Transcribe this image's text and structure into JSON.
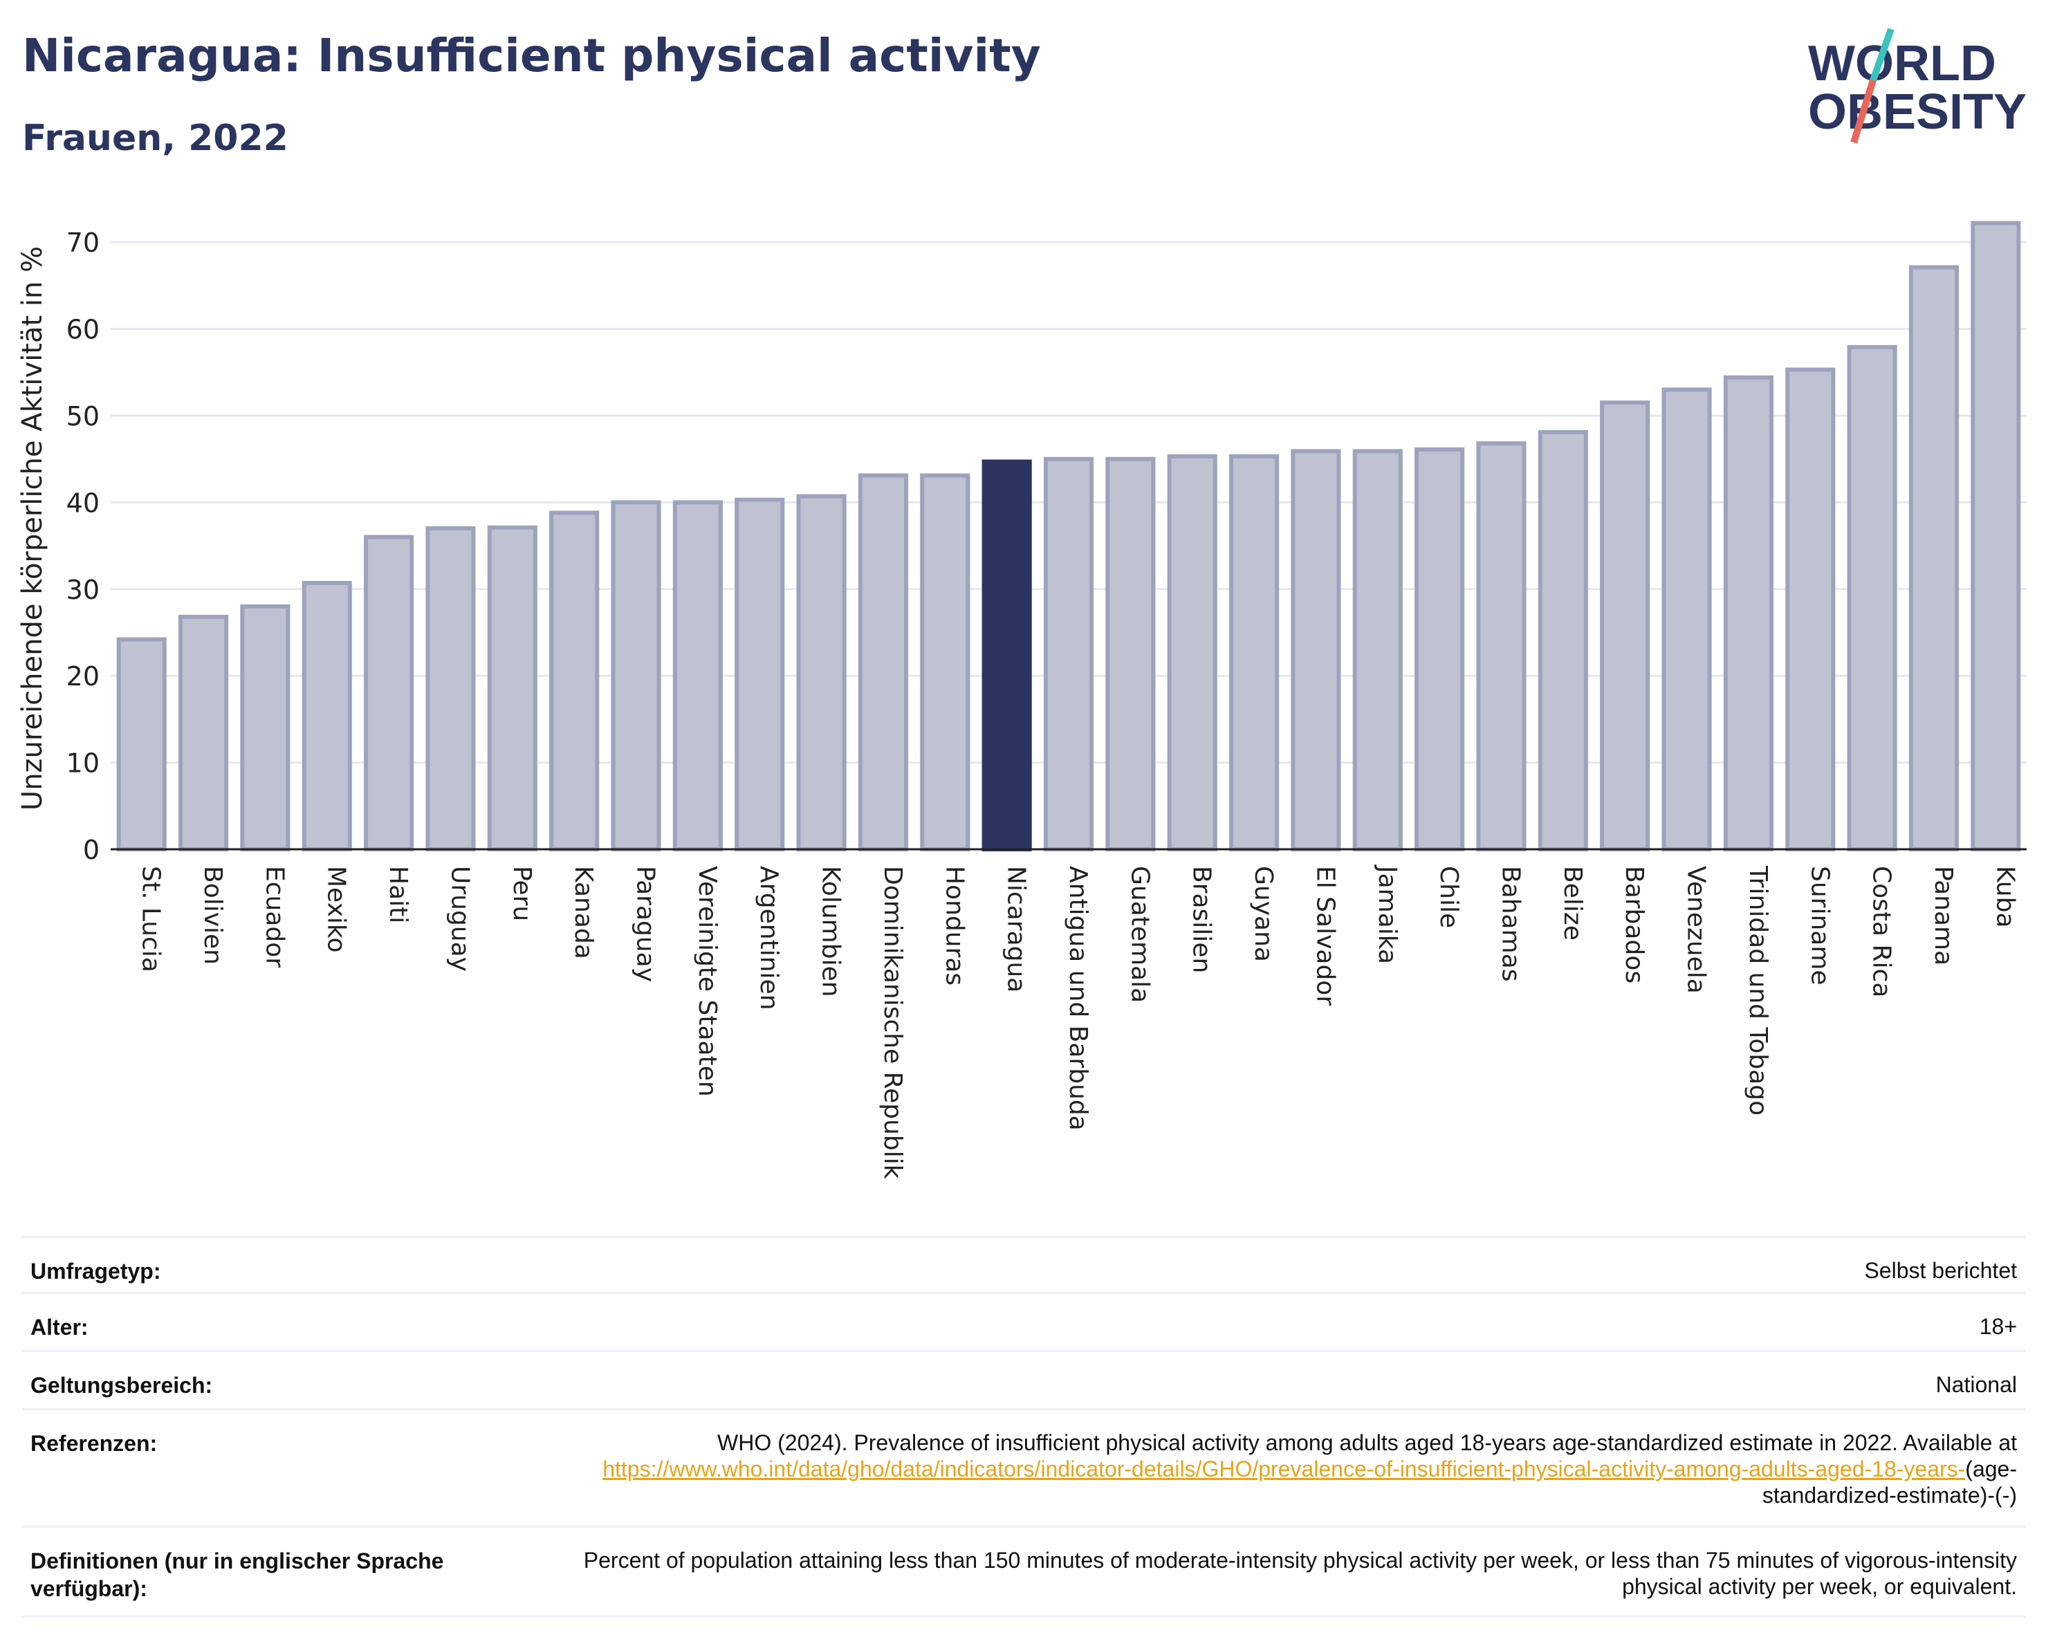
{
  "header": {
    "title": "Nicaragua: Insufficient physical activity",
    "subtitle": "Frauen, 2022"
  },
  "logo": {
    "line1": "WORLD",
    "line2": "OBESITY",
    "colors": {
      "text": "#2b3560",
      "slash_top": "#3cc3c0",
      "slash_bottom": "#e8665a"
    }
  },
  "colors": {
    "bar": "#bfc2d0",
    "bar_stroke": "#9da3bc",
    "highlight": "#2b3560",
    "grid": "#e6e8ef",
    "axis": "#222222"
  },
  "chart_data": {
    "type": "bar",
    "categories": [
      "St. Lucia",
      "Bolivien",
      "Ecuador",
      "Mexiko",
      "Haiti",
      "Uruguay",
      "Peru",
      "Kanada",
      "Paraguay",
      "Vereinigte Staaten",
      "Argentinien",
      "Kolumbien",
      "Dominikanische Republik",
      "Honduras",
      "Nicaragua",
      "Antigua und Barbuda",
      "Guatemala",
      "Brasilien",
      "Guyana",
      "El Salvador",
      "Jamaika",
      "Chile",
      "Bahamas",
      "Belize",
      "Barbados",
      "Venezuela",
      "Trinidad und Tobago",
      "Suriname",
      "Costa Rica",
      "Panama",
      "Kuba"
    ],
    "values": [
      24.2,
      26.8,
      28.0,
      30.7,
      36.0,
      37.0,
      37.1,
      38.8,
      40.0,
      40.0,
      40.3,
      40.7,
      43.1,
      43.1,
      44.7,
      45.0,
      45.0,
      45.3,
      45.3,
      45.9,
      45.9,
      46.1,
      46.8,
      48.1,
      51.5,
      53.0,
      54.4,
      55.3,
      57.9,
      67.1,
      72.2
    ],
    "highlight": "Nicaragua",
    "ylabel": "Unzureichende körperliche Aktivität in %",
    "xlabel": "",
    "ylim": [
      0,
      74
    ],
    "yticks": [
      0,
      10,
      20,
      30,
      40,
      50,
      60,
      70
    ],
    "grid": true
  },
  "info": {
    "rows": [
      {
        "label": "Umfragetyp:",
        "value": "Selbst berichtet"
      },
      {
        "label": "Alter:",
        "value": "18+"
      },
      {
        "label": "Geltungsbereich:",
        "value": "National"
      }
    ],
    "references": {
      "label": "Referenzen:",
      "text": "WHO (2024). Prevalence of insufficient physical activity among adults aged 18-years age-standardized estimate in 2022. Available at",
      "link": "https://www.who.int/data/gho/data/indicators/indicator-details/GHO/prevalence-of-insufficient-physical-activity-among-adults-aged-18-years-",
      "suffix": "(age-standardized-estimate)-(-)"
    },
    "definitions": {
      "label": "Definitionen (nur in englischer Sprache verfügbar):",
      "value": "Percent of population attaining less than 150 minutes of moderate-intensity physical activity per week, or less than 75 minutes of vigorous-intensity physical activity per week, or equivalent."
    }
  }
}
